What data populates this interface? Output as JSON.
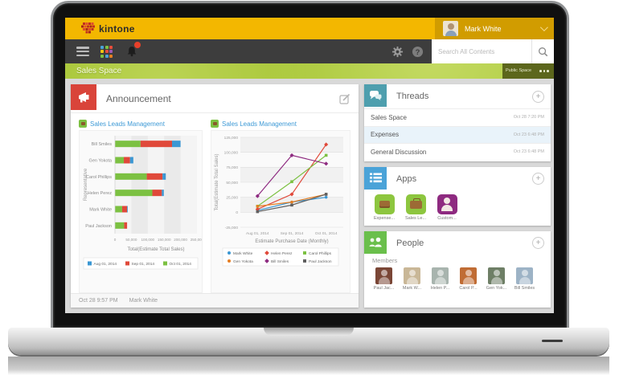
{
  "topbar": {
    "logo_text": "kintone",
    "user_name": "Mark White"
  },
  "navbar": {
    "search_placeholder": "Search All Contents"
  },
  "space": {
    "title": "Sales Space",
    "public_space_label": "Public Space"
  },
  "announcement": {
    "title": "Announcement",
    "footer_time": "Oct 28 9:57 PM",
    "footer_author": "Mark White"
  },
  "threads": {
    "title": "Threads",
    "items": [
      {
        "label": "Sales Space",
        "time": "Oct 28 7:20 PM",
        "selected": false
      },
      {
        "label": "Expenses",
        "time": "Oct 23 6:48 PM",
        "selected": true
      },
      {
        "label": "General Discussion",
        "time": "Oct 23 6:48 PM",
        "selected": false
      }
    ]
  },
  "apps": {
    "title": "Apps",
    "items": [
      {
        "label": "Expense...",
        "color": "#8dc63f",
        "glyph": "wallet-icon"
      },
      {
        "label": "Sales Le...",
        "color": "#8dc63f",
        "glyph": "briefcase-icon"
      },
      {
        "label": "Custom...",
        "color": "#8e2a80",
        "glyph": "person-icon"
      }
    ]
  },
  "people": {
    "title": "People",
    "members_label": "Members",
    "members": [
      "Paul Jac...",
      "Mark W...",
      "Helen P...",
      "Carol P...",
      "Gen Yok...",
      "Bill Smiles"
    ]
  },
  "icons": {
    "topbar": [
      "kintone-logo-icon",
      "chevron-down-icon"
    ],
    "navbar": [
      "hamburger-icon",
      "app-grid-icon",
      "bell-icon",
      "notification-badge",
      "gear-icon",
      "help-icon",
      "search-icon"
    ],
    "panels": [
      "megaphone-icon",
      "edit-icon",
      "threads-icon",
      "apps-icon",
      "people-icon",
      "plus-icon",
      "more-options-icon"
    ]
  },
  "chart_data": [
    {
      "type": "bar",
      "orientation": "horizontal",
      "stacked": true,
      "title": "Sales Leads Management",
      "categories": [
        "Bill Smiles",
        "Gen Yokota",
        "Carol Phillips",
        "Helen Perez",
        "Mark White",
        "Paul Jackson"
      ],
      "series": [
        {
          "name": "Aug 01, 2014",
          "color": "#3b97d3",
          "values": [
            26000,
            10000,
            10000,
            6000,
            2000,
            0
          ]
        },
        {
          "name": "Sep 01, 2014",
          "color": "#e0493a",
          "values": [
            96000,
            19000,
            48000,
            29000,
            15000,
            9000
          ]
        },
        {
          "name": "Oct 01, 2014",
          "color": "#7cc142",
          "values": [
            78000,
            27000,
            97000,
            114000,
            22000,
            28000
          ]
        }
      ],
      "stack_order": [
        2,
        1,
        0
      ],
      "xlabel": "Total(Estimate Total Sales)",
      "ylabel": "Representative",
      "xlim": [
        0,
        250000
      ],
      "xticks": [
        "0",
        "50,000",
        "100,000",
        "150,000",
        "200,000",
        "250,000"
      ],
      "legend_position": "bottom",
      "grid": true
    },
    {
      "type": "line",
      "title": "Sales Leads Management",
      "x": [
        "Aug 01, 2014",
        "Sep 01, 2014",
        "Oct 01, 2014"
      ],
      "series": [
        {
          "name": "Mark White",
          "color": "#3b97d3",
          "marker": "circle",
          "values": [
            3000,
            17000,
            25000
          ]
        },
        {
          "name": "Helen Perez",
          "color": "#e0493a",
          "marker": "diamond",
          "values": [
            5000,
            30000,
            113000
          ]
        },
        {
          "name": "Carol Phillips",
          "color": "#7cc142",
          "marker": "square",
          "values": [
            10000,
            51000,
            95000
          ]
        },
        {
          "name": "Gen Yokota",
          "color": "#e67e22",
          "marker": "circle",
          "values": [
            10000,
            17000,
            30000
          ]
        },
        {
          "name": "Bill Smiles",
          "color": "#8e2a80",
          "marker": "diamond",
          "values": [
            27000,
            95000,
            81000
          ]
        },
        {
          "name": "Paul Jackson",
          "color": "#5f5f5f",
          "marker": "square",
          "values": [
            1000,
            12000,
            30000
          ]
        }
      ],
      "xlabel": "Estimate Purchase Date (Monthly)",
      "ylabel": "Total(Estimate Total Sales)",
      "ylim": [
        -25000,
        125000
      ],
      "yticks": [
        -25000,
        0,
        25000,
        50000,
        75000,
        100000,
        125000
      ],
      "legend_position": "bottom",
      "grid": true
    }
  ]
}
